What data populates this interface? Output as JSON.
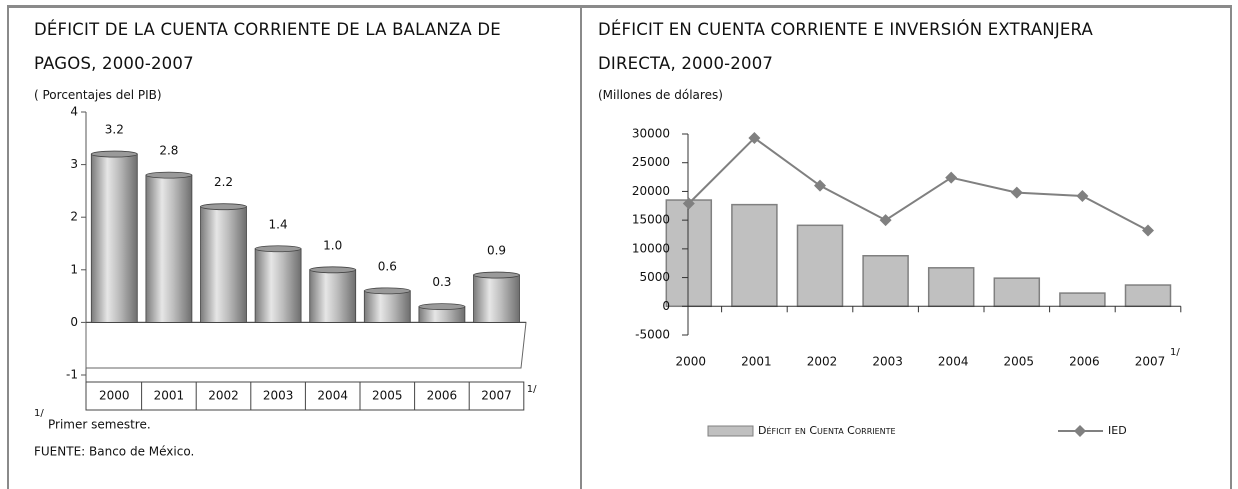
{
  "chart_data": [
    {
      "type": "bar",
      "title": "DÉFICIT DE LA CUENTA CORRIENTE DE LA BALANZA DE PAGOS, 2000-2007",
      "subtitle": "( Porcentajes del PIB)",
      "categories": [
        "2000",
        "2001",
        "2002",
        "2003",
        "2004",
        "2005",
        "2006",
        "2007"
      ],
      "category_note": "1/",
      "values": [
        3.2,
        2.8,
        2.2,
        1.4,
        1.0,
        0.6,
        0.3,
        0.9
      ],
      "value_labels": [
        "3.2",
        "2.8",
        "2.2",
        "1.4",
        "1.0",
        "0.6",
        "0.3",
        "0.9"
      ],
      "color": "#a8a8a8",
      "ylim": [
        -1,
        4
      ],
      "yticks": [
        -1,
        0,
        1,
        2,
        3,
        4
      ],
      "footnote": {
        "mark": "1/",
        "text": "Primer semestre."
      },
      "source": "FUENTE: Banco de México."
    },
    {
      "type": "bar",
      "title": "DÉFICIT EN CUENTA CORRIENTE E INVERSIÓN EXTRANJERA DIRECTA, 2000-2007",
      "subtitle": "(Millones de dólares)",
      "categories": [
        "2000",
        "2001",
        "2002",
        "2003",
        "2004",
        "2005",
        "2006",
        "2007"
      ],
      "category_note": "1/",
      "series": [
        {
          "name": "Déficit en Cuenta Corriente",
          "type": "bar",
          "color": "#c0c0c0",
          "values": [
            18500,
            17700,
            14100,
            8800,
            6700,
            4900,
            2300,
            3700
          ]
        },
        {
          "name": "IED",
          "type": "line",
          "color": "#808080",
          "values": [
            17900,
            29300,
            21000,
            15000,
            22400,
            19800,
            19200,
            13200
          ]
        }
      ],
      "ylim": [
        -5000,
        30000
      ],
      "yticks": [
        -5000,
        0,
        5000,
        10000,
        15000,
        20000,
        25000,
        30000
      ],
      "legend": "bottom"
    }
  ]
}
